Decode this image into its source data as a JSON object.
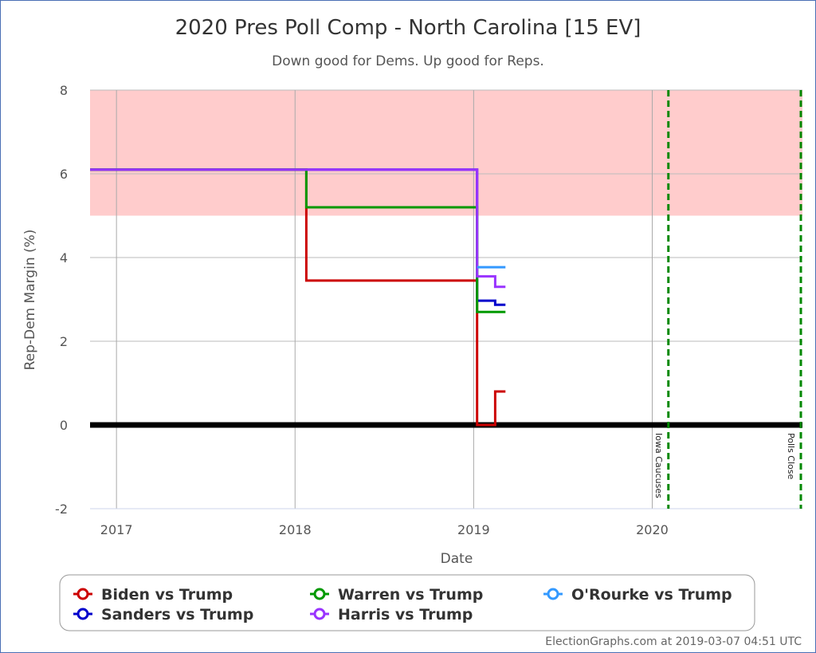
{
  "chart_data": {
    "type": "line",
    "step": true,
    "title": "2020 Pres Poll Comp - North Carolina [15 EV]",
    "subtitle": "Down good for Dems. Up good for Reps.",
    "xlabel": "Date",
    "ylabel": "Rep-Dem Margin (%)",
    "xlim": [
      "2016-11-08",
      "2020-11-03"
    ],
    "ylim": [
      -2,
      8
    ],
    "x_ticks": [
      {
        "label": "2017",
        "date": "2017-01-01"
      },
      {
        "label": "2018",
        "date": "2018-01-01"
      },
      {
        "label": "2019",
        "date": "2019-01-01"
      },
      {
        "label": "2020",
        "date": "2020-01-01"
      }
    ],
    "y_ticks": [
      -2,
      0,
      2,
      4,
      6,
      8
    ],
    "grid": true,
    "shaded_band": {
      "from": 5,
      "to": 8,
      "color": "#ffcccc"
    },
    "zero_line": 0,
    "markers": [
      {
        "label": "Iowa Caucuses",
        "date": "2020-02-03",
        "color": "#008800"
      },
      {
        "label": "Polls Close",
        "date": "2020-11-03",
        "color": "#008800"
      }
    ],
    "legend_position": "bottom",
    "series": [
      {
        "name": "Biden vs Trump",
        "color": "#cc0000",
        "points": [
          [
            "2016-11-08",
            6.1
          ],
          [
            "2018-01-24",
            6.1
          ],
          [
            "2018-01-24",
            3.45
          ],
          [
            "2019-01-08",
            3.45
          ],
          [
            "2019-01-08",
            0
          ],
          [
            "2019-02-14",
            0
          ],
          [
            "2019-02-14",
            0.8
          ],
          [
            "2019-03-07",
            0.8
          ]
        ]
      },
      {
        "name": "Sanders vs Trump",
        "color": "#0000cc",
        "points": [
          [
            "2016-11-08",
            6.1
          ],
          [
            "2019-01-08",
            6.1
          ],
          [
            "2019-01-08",
            2.97
          ],
          [
            "2019-02-14",
            2.97
          ],
          [
            "2019-02-14",
            2.87
          ],
          [
            "2019-03-07",
            2.87
          ]
        ]
      },
      {
        "name": "Warren vs Trump",
        "color": "#009900",
        "points": [
          [
            "2016-11-08",
            6.1
          ],
          [
            "2018-01-24",
            6.1
          ],
          [
            "2018-01-24",
            5.2
          ],
          [
            "2019-01-08",
            5.2
          ],
          [
            "2019-01-08",
            2.7
          ],
          [
            "2019-03-07",
            2.7
          ]
        ]
      },
      {
        "name": "Harris vs Trump",
        "color": "#9933ff",
        "points": [
          [
            "2016-11-08",
            6.1
          ],
          [
            "2019-01-08",
            6.1
          ],
          [
            "2019-01-08",
            3.55
          ],
          [
            "2019-02-14",
            3.55
          ],
          [
            "2019-02-14",
            3.3
          ],
          [
            "2019-03-07",
            3.3
          ]
        ]
      },
      {
        "name": "O'Rourke vs Trump",
        "color": "#3399ff",
        "points": [
          [
            "2019-01-08",
            3.77
          ],
          [
            "2019-03-07",
            3.77
          ]
        ]
      }
    ]
  },
  "footer": "ElectionGraphs.com at 2019-03-07 04:51 UTC"
}
